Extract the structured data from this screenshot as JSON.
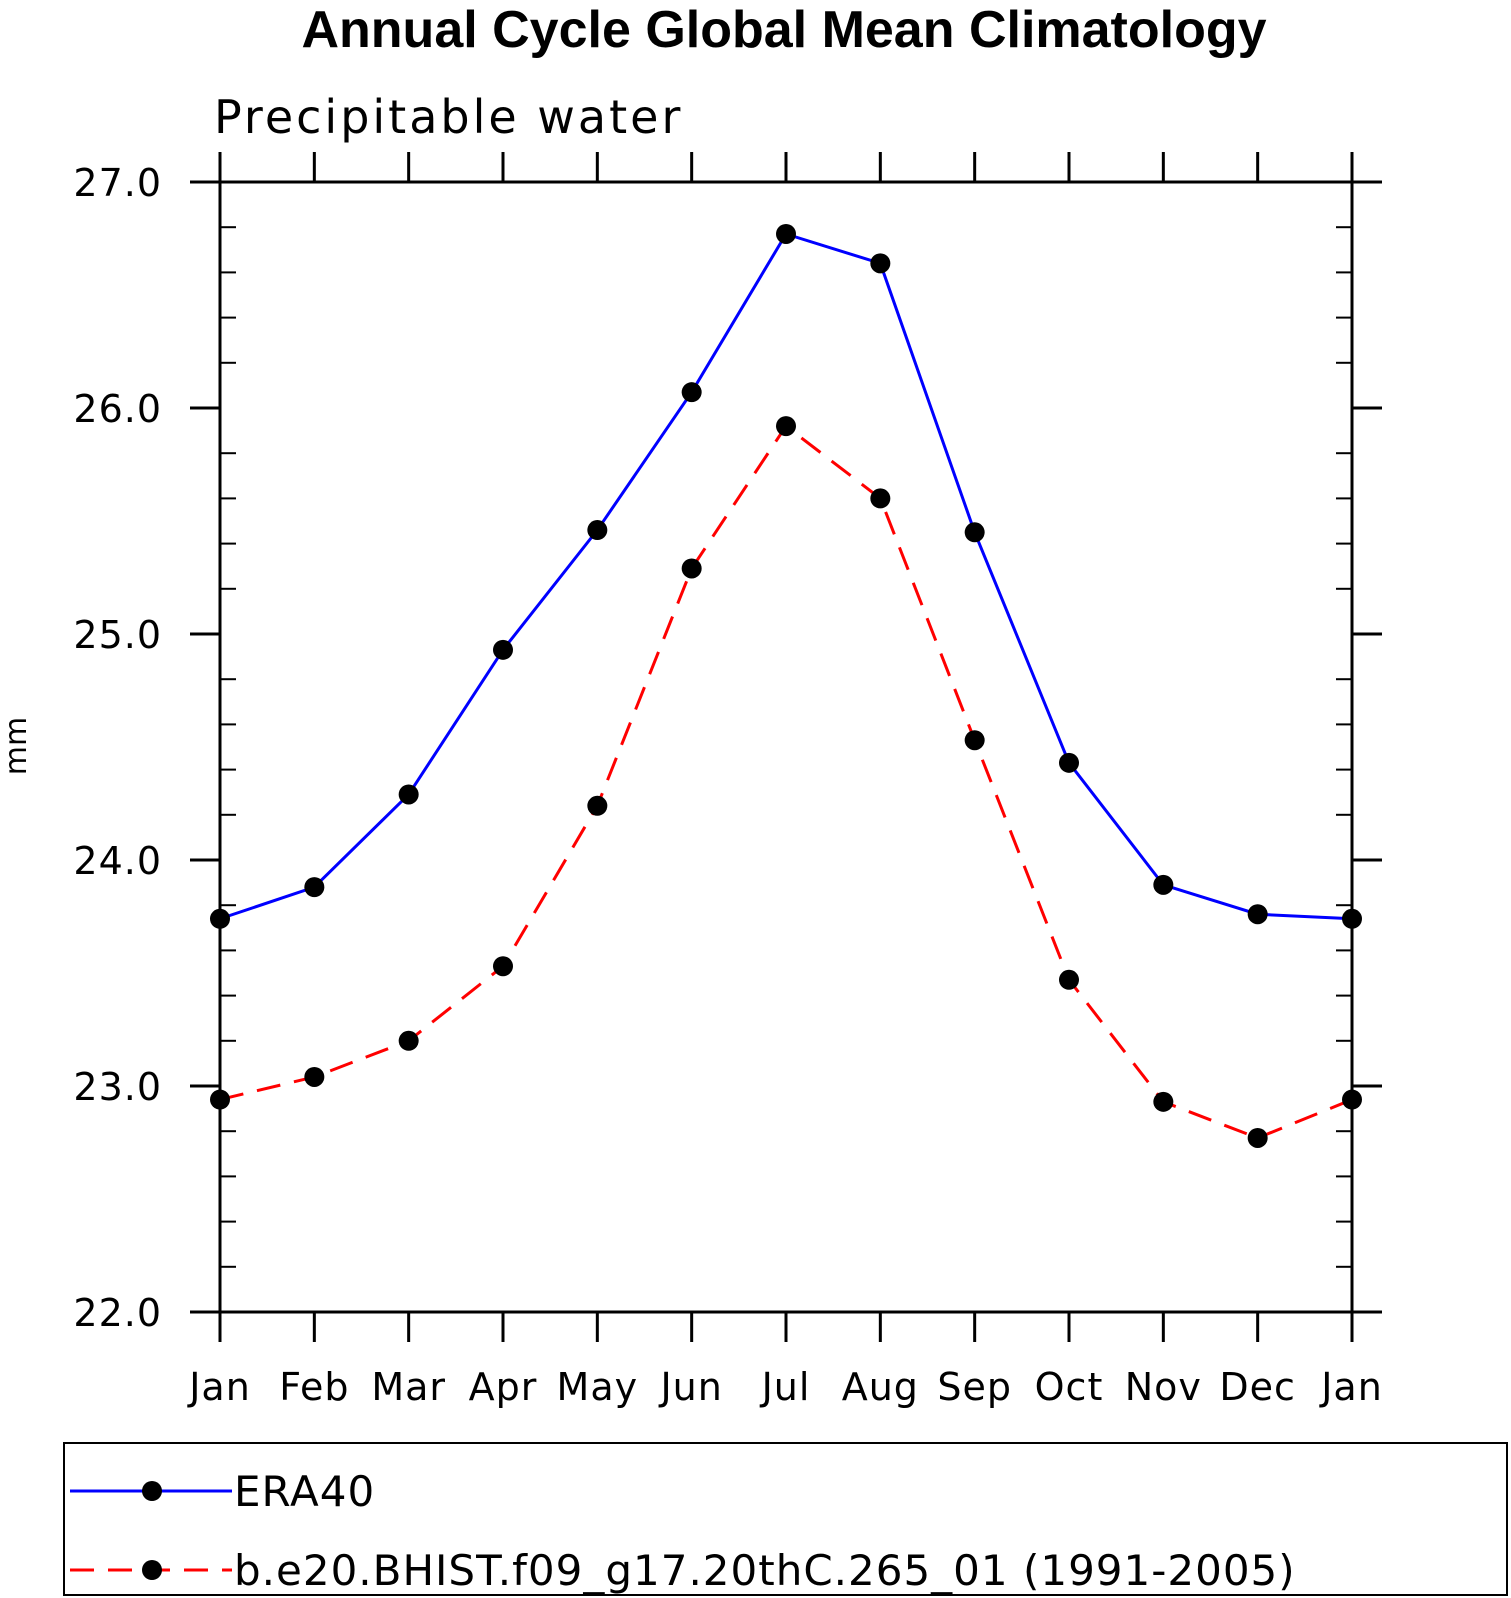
{
  "chart_data": {
    "type": "line",
    "title": "Annual Cycle Global Mean Climatology",
    "subtitle": "Precipitable water",
    "xlabel": "",
    "ylabel": "mm",
    "categories": [
      "Jan",
      "Feb",
      "Mar",
      "Apr",
      "May",
      "Jun",
      "Jul",
      "Aug",
      "Sep",
      "Oct",
      "Nov",
      "Dec",
      "Jan"
    ],
    "ylim": [
      22.0,
      27.0
    ],
    "yticks": [
      "22.0",
      "23.0",
      "24.0",
      "25.0",
      "26.0",
      "27.0"
    ],
    "yminor_step": 0.2,
    "grid": false,
    "legend_position": "bottom",
    "series": [
      {
        "name": "ERA40",
        "color": "#0000ff",
        "line_style": "solid",
        "marker": "filled-circle",
        "values": [
          23.74,
          23.88,
          24.29,
          24.93,
          25.46,
          26.07,
          26.77,
          26.64,
          25.45,
          24.43,
          23.89,
          23.76,
          23.74
        ]
      },
      {
        "name": "b.e20.BHIST.f09_g17.20thC.265_01 (1991-2005)",
        "color": "#ff0000",
        "line_style": "dashed",
        "marker": "filled-circle",
        "values": [
          22.94,
          23.04,
          23.2,
          23.53,
          24.24,
          25.29,
          25.92,
          25.6,
          24.53,
          23.47,
          22.93,
          22.77,
          22.94
        ]
      }
    ]
  }
}
